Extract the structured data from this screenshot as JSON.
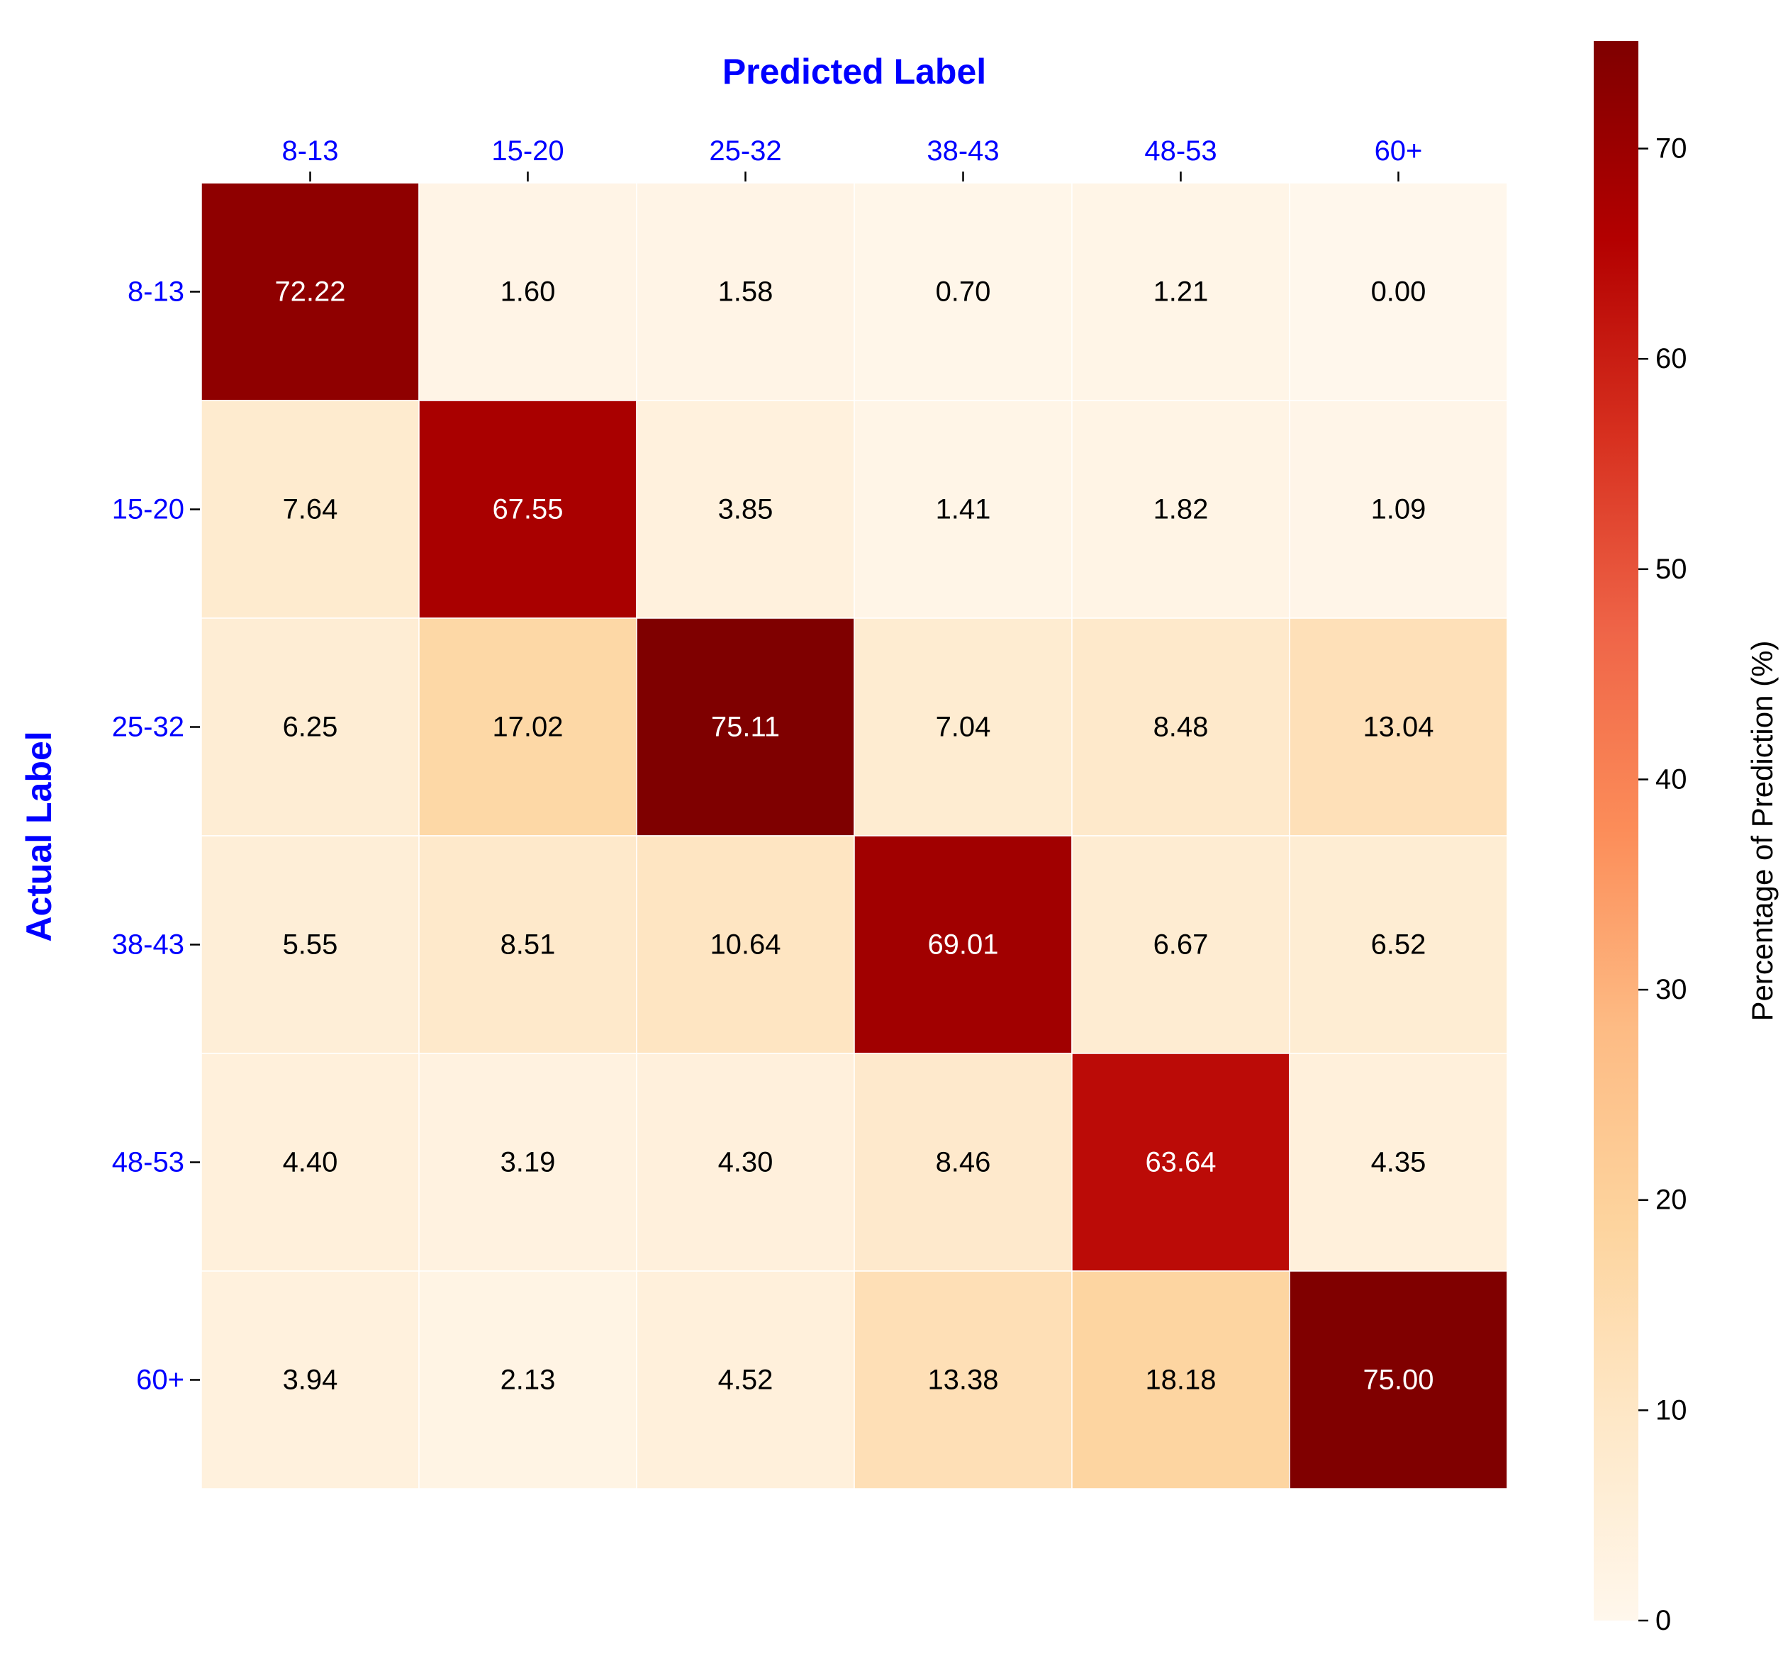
{
  "chart_data": {
    "type": "heatmap",
    "xlabel": "Predicted Label",
    "ylabel": "Actual Label",
    "x_categories": [
      "8-13",
      "15-20",
      "25-32",
      "38-43",
      "48-53",
      "60+"
    ],
    "y_categories": [
      "8-13",
      "15-20",
      "25-32",
      "38-43",
      "48-53",
      "60+"
    ],
    "values": [
      [
        72.22,
        1.6,
        1.58,
        0.7,
        1.21,
        0.0
      ],
      [
        7.64,
        67.55,
        3.85,
        1.41,
        1.82,
        1.09
      ],
      [
        6.25,
        17.02,
        75.11,
        7.04,
        8.48,
        13.04
      ],
      [
        5.55,
        8.51,
        10.64,
        69.01,
        6.67,
        6.52
      ],
      [
        4.4,
        3.19,
        4.3,
        8.46,
        63.64,
        4.35
      ],
      [
        3.94,
        2.13,
        4.52,
        13.38,
        18.18,
        75.0
      ]
    ],
    "value_labels": [
      [
        "72.22",
        "1.60",
        "1.58",
        "0.70",
        "1.21",
        "0.00"
      ],
      [
        "7.64",
        "67.55",
        "3.85",
        "1.41",
        "1.82",
        "1.09"
      ],
      [
        "6.25",
        "17.02",
        "75.11",
        "7.04",
        "8.48",
        "13.04"
      ],
      [
        "5.55",
        "8.51",
        "10.64",
        "69.01",
        "6.67",
        "6.52"
      ],
      [
        "4.40",
        "3.19",
        "4.30",
        "8.46",
        "63.64",
        "4.35"
      ],
      [
        "3.94",
        "2.13",
        "4.52",
        "13.38",
        "18.18",
        "75.00"
      ]
    ],
    "colorbar": {
      "label": "Percentage of Prediction (%)",
      "range": [
        0,
        75.11
      ],
      "ticks": [
        0,
        10,
        20,
        30,
        40,
        50,
        60,
        70
      ],
      "tick_labels": [
        "0",
        "10",
        "20",
        "30",
        "40",
        "50",
        "60",
        "70"
      ],
      "colormap": "OrRd"
    },
    "x_axis_position": "top",
    "grid": false
  },
  "colors": {
    "axis_text": "#0000ff",
    "cell_border": "#ffffff",
    "text_dark": "#000000",
    "text_light": "#ffffff",
    "colormap_stops": [
      "#fff7ec",
      "#fee8c8",
      "#fdd49e",
      "#fdbb84",
      "#fc8d59",
      "#ef6548",
      "#d7301f",
      "#b30000",
      "#7f0000"
    ]
  }
}
